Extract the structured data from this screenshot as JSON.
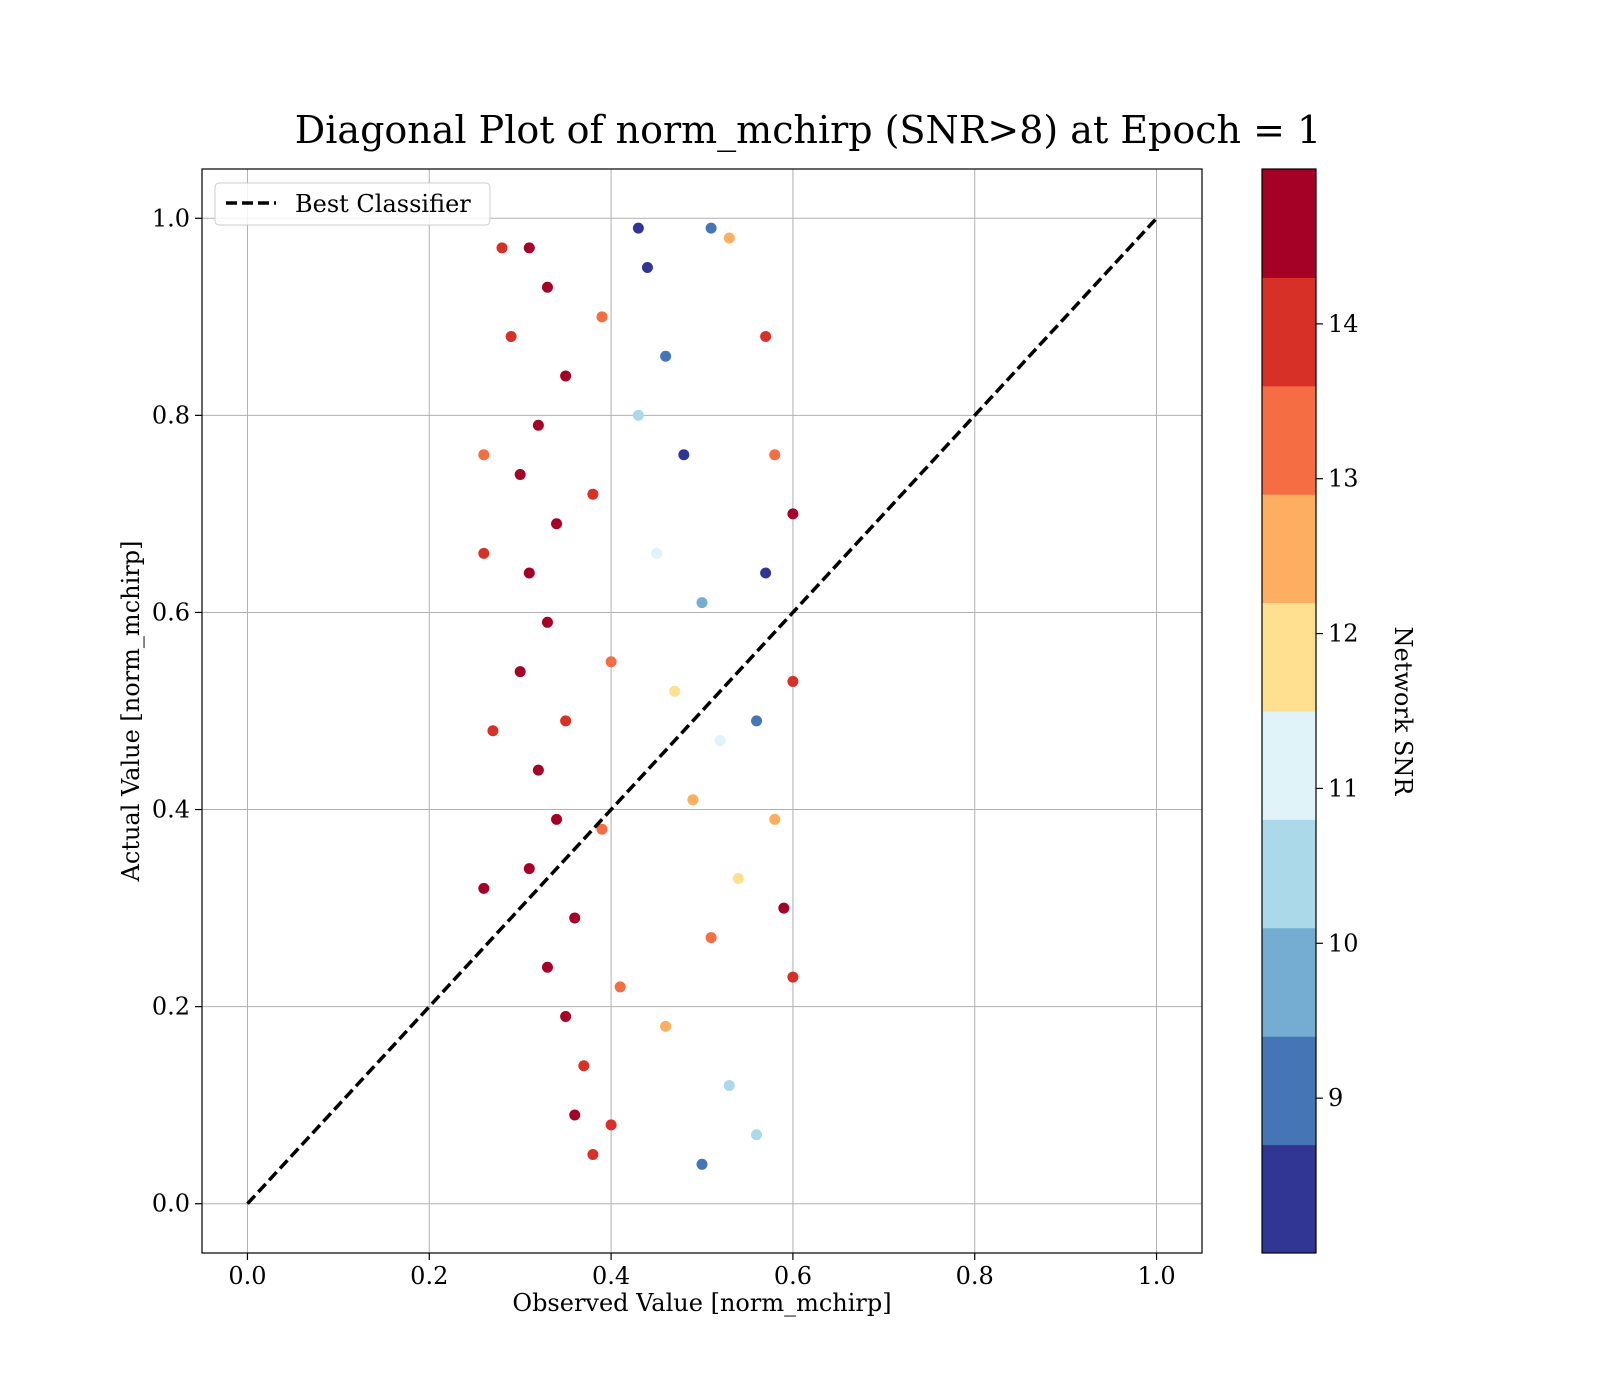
{
  "chart_data": {
    "type": "scatter",
    "title": "Diagonal Plot of norm_mchirp (SNR>8) at Epoch = 1",
    "xlabel": "Observed Value [norm_mchirp]",
    "ylabel": "Actual Value [norm_mchirp]",
    "xlim": [
      -0.05,
      1.05
    ],
    "ylim": [
      -0.05,
      1.05
    ],
    "x_ticks": [
      "0.0",
      "0.2",
      "0.4",
      "0.6",
      "0.8",
      "1.0"
    ],
    "y_ticks": [
      "0.0",
      "0.2",
      "0.4",
      "0.6",
      "0.8",
      "1.0"
    ],
    "grid": true,
    "legend_position": "top-left",
    "reference_line": {
      "name": "Best Classifier",
      "x": [
        0.0,
        1.0
      ],
      "y": [
        0.0,
        1.0
      ],
      "style": "dashed",
      "color": "#000000"
    },
    "colorbar": {
      "label": "Network SNR",
      "min": 8.0,
      "max": 15.0,
      "tick_values": [
        9,
        10,
        11,
        12,
        13,
        14
      ],
      "tick_labels": [
        "9",
        "10",
        "11",
        "12",
        "13",
        "14"
      ],
      "bins": [
        {
          "from": 8.0,
          "to": 8.7,
          "color": "#313695"
        },
        {
          "from": 8.7,
          "to": 9.4,
          "color": "#4575b4"
        },
        {
          "from": 9.4,
          "to": 10.1,
          "color": "#74add1"
        },
        {
          "from": 10.1,
          "to": 10.8,
          "color": "#abd9e9"
        },
        {
          "from": 10.8,
          "to": 11.5,
          "color": "#e0f3f8"
        },
        {
          "from": 11.5,
          "to": 12.2,
          "color": "#fee090"
        },
        {
          "from": 12.2,
          "to": 12.9,
          "color": "#fdae61"
        },
        {
          "from": 12.9,
          "to": 13.6,
          "color": "#f46d43"
        },
        {
          "from": 13.6,
          "to": 14.3,
          "color": "#d73027"
        },
        {
          "from": 14.3,
          "to": 15.0,
          "color": "#a50026"
        }
      ]
    },
    "points": [
      {
        "x": 0.31,
        "y": 0.97,
        "snr": 14.8
      },
      {
        "x": 0.33,
        "y": 0.93,
        "snr": 14.6
      },
      {
        "x": 0.29,
        "y": 0.88,
        "snr": 14.2
      },
      {
        "x": 0.35,
        "y": 0.84,
        "snr": 14.9
      },
      {
        "x": 0.32,
        "y": 0.79,
        "snr": 14.5
      },
      {
        "x": 0.3,
        "y": 0.74,
        "snr": 14.7
      },
      {
        "x": 0.34,
        "y": 0.69,
        "snr": 14.4
      },
      {
        "x": 0.31,
        "y": 0.64,
        "snr": 14.8
      },
      {
        "x": 0.33,
        "y": 0.59,
        "snr": 14.6
      },
      {
        "x": 0.3,
        "y": 0.54,
        "snr": 14.9
      },
      {
        "x": 0.35,
        "y": 0.49,
        "snr": 14.3
      },
      {
        "x": 0.32,
        "y": 0.44,
        "snr": 14.7
      },
      {
        "x": 0.34,
        "y": 0.39,
        "snr": 14.5
      },
      {
        "x": 0.31,
        "y": 0.34,
        "snr": 14.8
      },
      {
        "x": 0.36,
        "y": 0.29,
        "snr": 14.4
      },
      {
        "x": 0.33,
        "y": 0.24,
        "snr": 14.6
      },
      {
        "x": 0.35,
        "y": 0.19,
        "snr": 14.9
      },
      {
        "x": 0.37,
        "y": 0.14,
        "snr": 14.2
      },
      {
        "x": 0.36,
        "y": 0.09,
        "snr": 14.7
      },
      {
        "x": 0.38,
        "y": 0.05,
        "snr": 14.1
      },
      {
        "x": 0.39,
        "y": 0.9,
        "snr": 13.4
      },
      {
        "x": 0.38,
        "y": 0.72,
        "snr": 13.8
      },
      {
        "x": 0.4,
        "y": 0.55,
        "snr": 13.1
      },
      {
        "x": 0.39,
        "y": 0.38,
        "snr": 13.6
      },
      {
        "x": 0.41,
        "y": 0.22,
        "snr": 13.2
      },
      {
        "x": 0.4,
        "y": 0.08,
        "snr": 13.9
      },
      {
        "x": 0.44,
        "y": 0.95,
        "snr": 8.3
      },
      {
        "x": 0.46,
        "y": 0.86,
        "snr": 9.1
      },
      {
        "x": 0.43,
        "y": 0.8,
        "snr": 10.4
      },
      {
        "x": 0.48,
        "y": 0.76,
        "snr": 8.6
      },
      {
        "x": 0.45,
        "y": 0.66,
        "snr": 11.2
      },
      {
        "x": 0.5,
        "y": 0.61,
        "snr": 9.8
      },
      {
        "x": 0.47,
        "y": 0.52,
        "snr": 12.1
      },
      {
        "x": 0.52,
        "y": 0.47,
        "snr": 10.9
      },
      {
        "x": 0.49,
        "y": 0.41,
        "snr": 12.6
      },
      {
        "x": 0.54,
        "y": 0.33,
        "snr": 11.7
      },
      {
        "x": 0.51,
        "y": 0.27,
        "snr": 13.3
      },
      {
        "x": 0.46,
        "y": 0.18,
        "snr": 12.4
      },
      {
        "x": 0.53,
        "y": 0.12,
        "snr": 10.2
      },
      {
        "x": 0.5,
        "y": 0.04,
        "snr": 9.4
      },
      {
        "x": 0.57,
        "y": 0.88,
        "snr": 13.7
      },
      {
        "x": 0.58,
        "y": 0.76,
        "snr": 13.1
      },
      {
        "x": 0.6,
        "y": 0.7,
        "snr": 14.6
      },
      {
        "x": 0.57,
        "y": 0.64,
        "snr": 8.4
      },
      {
        "x": 0.56,
        "y": 0.49,
        "snr": 8.8
      },
      {
        "x": 0.6,
        "y": 0.53,
        "snr": 13.9
      },
      {
        "x": 0.58,
        "y": 0.39,
        "snr": 12.8
      },
      {
        "x": 0.59,
        "y": 0.3,
        "snr": 14.5
      },
      {
        "x": 0.6,
        "y": 0.23,
        "snr": 14.0
      },
      {
        "x": 0.56,
        "y": 0.07,
        "snr": 10.6
      },
      {
        "x": 0.26,
        "y": 0.32,
        "snr": 14.4
      },
      {
        "x": 0.27,
        "y": 0.48,
        "snr": 14.1
      },
      {
        "x": 0.26,
        "y": 0.66,
        "snr": 13.8
      },
      {
        "x": 0.26,
        "y": 0.76,
        "snr": 13.5
      },
      {
        "x": 0.28,
        "y": 0.97,
        "snr": 14.0
      },
      {
        "x": 0.51,
        "y": 0.99,
        "snr": 9.2
      },
      {
        "x": 0.43,
        "y": 0.99,
        "snr": 8.5
      },
      {
        "x": 0.53,
        "y": 0.98,
        "snr": 12.9
      }
    ]
  }
}
